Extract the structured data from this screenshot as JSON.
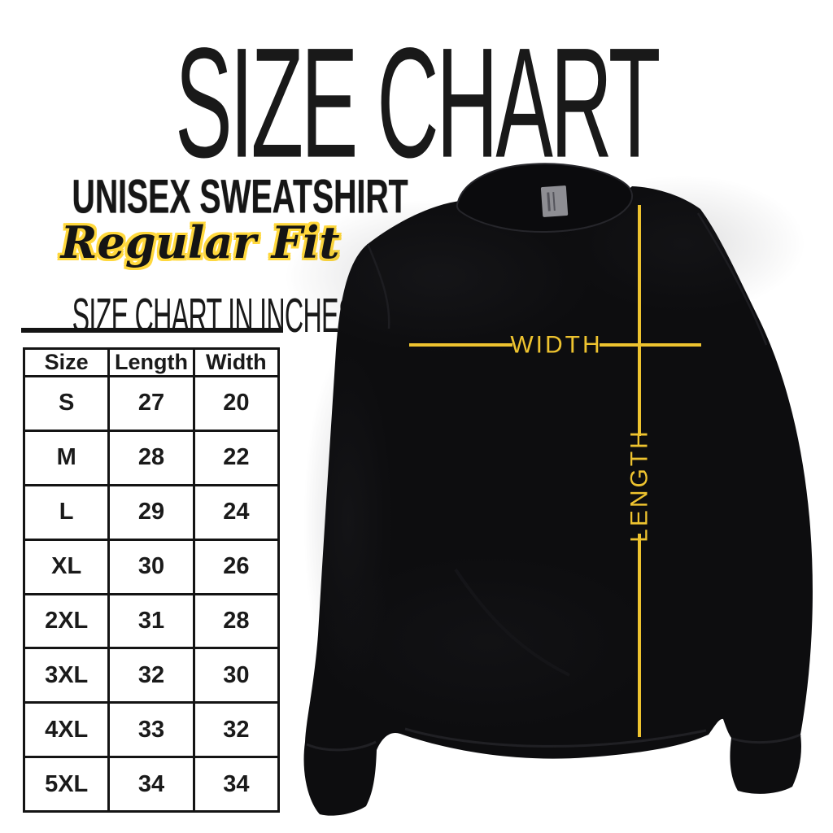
{
  "title": "SIZE CHART",
  "subtitle": {
    "line1": "UNISEX SWEATSHIRT",
    "line2": "Regular Fit"
  },
  "table_heading": "SIZE CHART IN INCHES",
  "chart_data": {
    "type": "table",
    "title": "SIZE CHART IN INCHES",
    "units": "inches",
    "columns": [
      "Size",
      "Length",
      "Width"
    ],
    "rows": [
      [
        "S",
        "27",
        "20"
      ],
      [
        "M",
        "28",
        "22"
      ],
      [
        "L",
        "29",
        "24"
      ],
      [
        "XL",
        "30",
        "26"
      ],
      [
        "2XL",
        "31",
        "28"
      ],
      [
        "3XL",
        "32",
        "30"
      ],
      [
        "4XL",
        "33",
        "32"
      ],
      [
        "5XL",
        "34",
        "34"
      ]
    ]
  },
  "diagram": {
    "width_label": "WIDTH",
    "length_label": "LENGTH"
  },
  "colors": {
    "accent_yellow": "#EEC32F",
    "outline_yellow": "#FFD83C",
    "text_black": "#141414",
    "garment_black": "#0D0D0F",
    "tag_gray": "#8E8E93"
  }
}
